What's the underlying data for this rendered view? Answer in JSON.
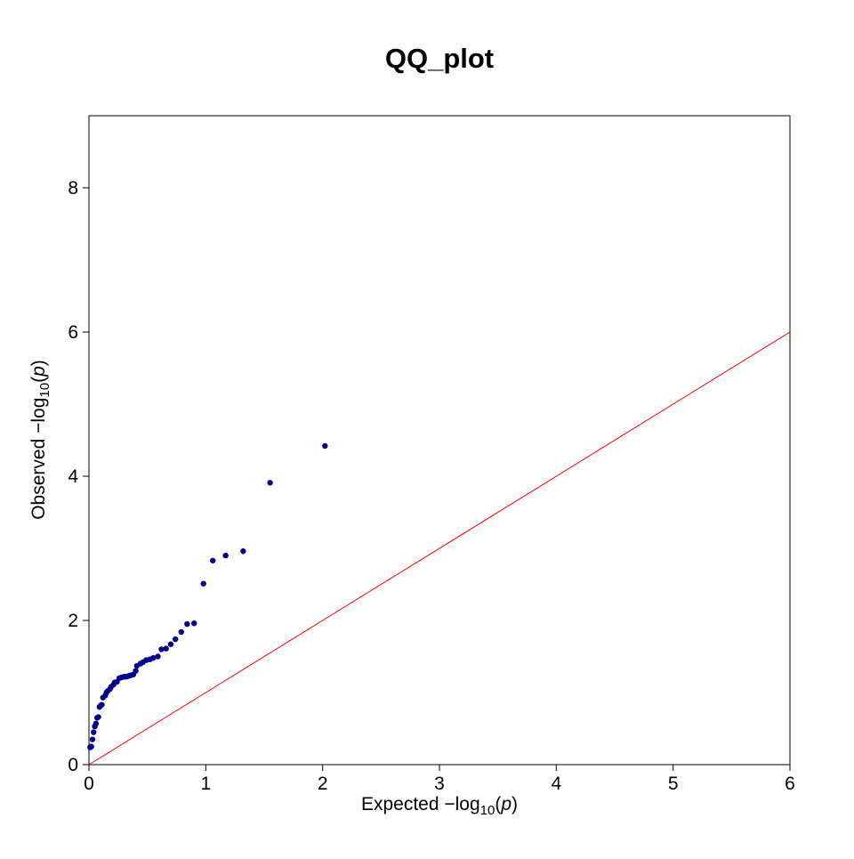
{
  "chart_data": {
    "type": "scatter",
    "title": "QQ_plot",
    "xlabel": {
      "prefix": "Expected",
      "log": "log",
      "sub": "10",
      "var": "p"
    },
    "ylabel": {
      "prefix": "Observed",
      "log": "log",
      "sub": "10",
      "var": "p"
    },
    "xlim": [
      0,
      6
    ],
    "ylim": [
      0,
      9
    ],
    "xticks": [
      0,
      1,
      2,
      3,
      4,
      5,
      6
    ],
    "yticks": [
      0,
      2,
      4,
      6,
      8
    ],
    "grid": false,
    "point_color": "#00008B",
    "line_color": "#FF0000",
    "reference_line": {
      "x": [
        0,
        6
      ],
      "y": [
        0,
        6
      ]
    },
    "points": {
      "x": [
        0.01,
        0.02,
        0.03,
        0.04,
        0.05,
        0.06,
        0.07,
        0.08,
        0.09,
        0.1,
        0.11,
        0.12,
        0.14,
        0.15,
        0.16,
        0.18,
        0.19,
        0.21,
        0.22,
        0.24,
        0.26,
        0.28,
        0.3,
        0.32,
        0.34,
        0.36,
        0.38,
        0.4,
        0.41,
        0.44,
        0.46,
        0.49,
        0.52,
        0.55,
        0.59,
        0.62,
        0.66,
        0.7,
        0.74,
        0.79,
        0.84,
        0.9,
        0.98,
        1.06,
        1.17,
        1.32,
        1.55,
        2.02
      ],
      "y": [
        0.24,
        0.25,
        0.35,
        0.45,
        0.53,
        0.57,
        0.65,
        0.66,
        0.8,
        0.82,
        0.83,
        0.93,
        0.96,
        1.0,
        1.02,
        1.05,
        1.08,
        1.11,
        1.14,
        1.15,
        1.2,
        1.21,
        1.22,
        1.22,
        1.23,
        1.24,
        1.25,
        1.3,
        1.37,
        1.4,
        1.42,
        1.45,
        1.46,
        1.48,
        1.5,
        1.6,
        1.61,
        1.67,
        1.74,
        1.84,
        1.95,
        1.96,
        2.51,
        2.83,
        2.9,
        2.96,
        3.91,
        4.42
      ]
    }
  }
}
